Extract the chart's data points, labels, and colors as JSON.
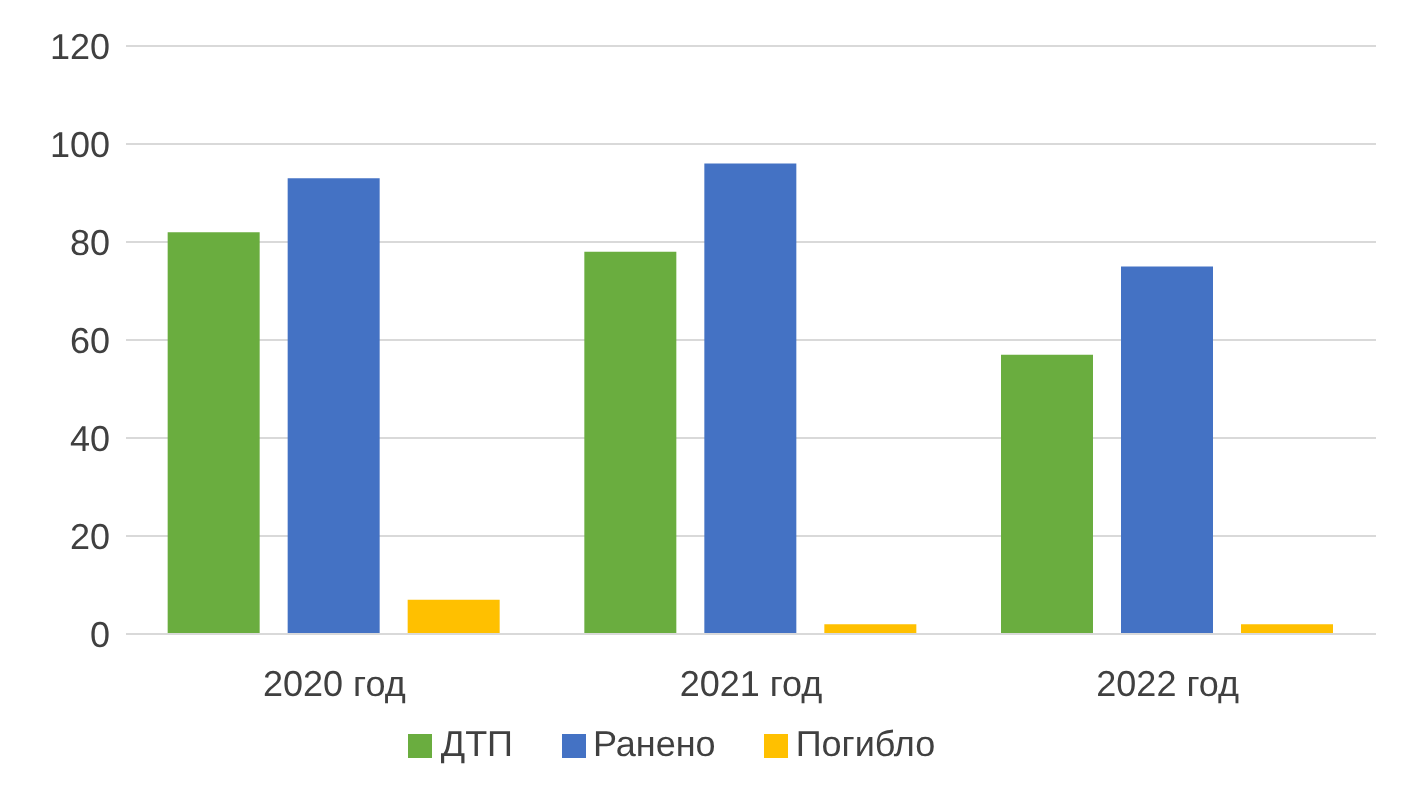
{
  "chart_data": {
    "type": "bar",
    "categories": [
      "2020 год",
      "2021 год",
      "2022 год"
    ],
    "series": [
      {
        "name": "ДТП",
        "color": "#6aad3f",
        "values": [
          82,
          78,
          57
        ]
      },
      {
        "name": "Ранено",
        "color": "#4472c4",
        "values": [
          93,
          96,
          75
        ]
      },
      {
        "name": "Погибло",
        "color": "#ffc000",
        "values": [
          7,
          2,
          2
        ]
      }
    ],
    "ylim": [
      0,
      120
    ],
    "yticks": [
      0,
      20,
      40,
      60,
      80,
      100,
      120
    ],
    "grid": "y",
    "legend": "bottom"
  }
}
